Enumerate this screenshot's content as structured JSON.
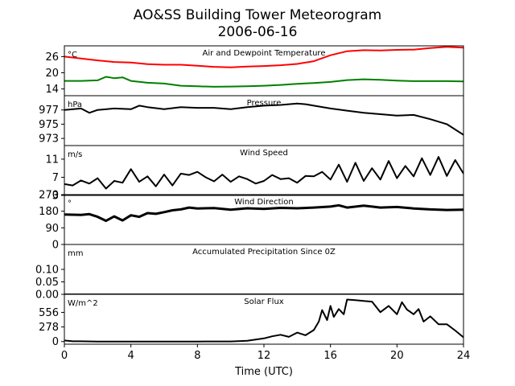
{
  "chart_data": {
    "title": "AO&SS Building Tower Meteorogram",
    "subtitle": "2006-06-16",
    "xlabel": "Time (UTC)",
    "xlim": [
      0,
      24
    ],
    "xticks": [
      "0",
      "4",
      "8",
      "12",
      "16",
      "20",
      "24"
    ],
    "panels": [
      {
        "id": "temp",
        "type": "line",
        "unit": "°C",
        "title": "Air and Dewpoint Temperature",
        "ylim": [
          11.5,
          30
        ],
        "yticks": [
          "14",
          "20",
          "26"
        ],
        "series": [
          {
            "name": "",
            "color": "#ff0000",
            "x": [
              0,
              1,
              2,
              3,
              4,
              5,
              6,
              7,
              8,
              9,
              10,
              11,
              12,
              13,
              14,
              15,
              16,
              17,
              18,
              19,
              20,
              21,
              22,
              23,
              24
            ],
            "y": [
              26,
              25.3,
              24.6,
              24,
              23.8,
              23.2,
              23,
              23,
              22.6,
              22.2,
              22,
              22.3,
              22.5,
              22.8,
              23.3,
              24.3,
              26.5,
              28,
              28.4,
              28.3,
              28.5,
              28.6,
              29.2,
              29.6,
              29.3
            ]
          },
          {
            "name": "",
            "color": "#008000",
            "x": [
              0,
              1,
              2,
              2.5,
              3,
              3.5,
              4,
              5,
              6,
              7,
              8,
              9,
              10,
              11,
              12,
              13,
              14,
              15,
              16,
              17,
              18,
              19,
              20,
              21,
              22,
              23,
              24
            ],
            "y": [
              17,
              17,
              17.2,
              18.5,
              18,
              18.3,
              17,
              16.3,
              16,
              15.2,
              15,
              14.8,
              14.9,
              15,
              15.2,
              15.5,
              15.9,
              16.2,
              16.6,
              17.3,
              17.6,
              17.4,
              17.1,
              16.9,
              16.9,
              16.9,
              16.8
            ]
          }
        ]
      },
      {
        "id": "pressure",
        "type": "line",
        "unit": "hPa",
        "title": "Pressure",
        "ylim": [
          972,
          979
        ],
        "yticks": [
          "973",
          "975",
          "977"
        ],
        "series": [
          {
            "name": "",
            "color": "#000000",
            "x": [
              0,
              1,
              1.5,
              2,
              3,
              4,
              4.5,
              5,
              6,
              7,
              8,
              9,
              10,
              11,
              12,
              13,
              14,
              14.5,
              15,
              16,
              17,
              18,
              19,
              20,
              21,
              22,
              23,
              24
            ],
            "y": [
              977,
              977.2,
              976.6,
              977,
              977.2,
              977.1,
              977.6,
              977.4,
              977.1,
              977.4,
              977.3,
              977.3,
              977.1,
              977.4,
              977.6,
              977.7,
              977.9,
              977.8,
              977.6,
              977.2,
              976.9,
              976.6,
              976.4,
              976.2,
              976.3,
              975.7,
              975,
              973.5
            ]
          }
        ]
      },
      {
        "id": "wind_speed",
        "type": "line",
        "unit": "m/s",
        "title": "Wind Speed",
        "ylim": [
          3,
          14
        ],
        "yticks": [
          "3",
          "7",
          "11"
        ],
        "series": [
          {
            "name": "",
            "color": "#000000",
            "x": [
              0,
              0.5,
              1,
              1.5,
              2,
              2.5,
              3,
              3.5,
              4,
              4.5,
              5,
              5.5,
              6,
              6.5,
              7,
              7.5,
              8,
              8.5,
              9,
              9.5,
              10,
              10.5,
              11,
              11.5,
              12,
              12.5,
              13,
              13.5,
              14,
              14.5,
              15,
              15.5,
              16,
              16.5,
              17,
              17.5,
              18,
              18.5,
              19,
              19.5,
              20,
              20.5,
              21,
              21.5,
              22,
              22.5,
              23,
              23.5,
              24
            ],
            "y": [
              5.5,
              5.2,
              6.3,
              5.6,
              6.8,
              4.5,
              6.2,
              5.8,
              8.8,
              6,
              7.2,
              5,
              7.6,
              5.2,
              7.8,
              7.5,
              8.2,
              7,
              6.1,
              7.6,
              6,
              7.2,
              6.6,
              5.6,
              6.2,
              7.5,
              6.6,
              6.8,
              5.8,
              7.3,
              7.2,
              8.2,
              6.5,
              9.8,
              6,
              10.2,
              6.2,
              9,
              6.5,
              10.6,
              6.8,
              9.5,
              7.2,
              11.2,
              7.5,
              11.5,
              7.3,
              10.8,
              7.8
            ]
          }
        ]
      },
      {
        "id": "wind_dir",
        "type": "line",
        "unit": "°",
        "title": "Wind Direction",
        "ylim": [
          0,
          270
        ],
        "yticks": [
          "0",
          "90",
          "180",
          "270"
        ],
        "series": [
          {
            "name": "",
            "color": "#000000",
            "x": [
              0,
              1,
              1.5,
              2,
              2.5,
              3,
              3.5,
              4,
              4.5,
              5,
              5.5,
              6,
              6.5,
              7,
              7.5,
              8,
              9,
              10,
              11,
              12,
              13,
              14,
              15,
              16,
              16.5,
              17,
              18,
              18.5,
              19,
              20,
              21,
              22,
              23,
              24
            ],
            "y": [
              162,
              160,
              164,
              150,
              128,
              152,
              130,
              158,
              150,
              170,
              166,
              175,
              185,
              190,
              200,
              195,
              197,
              188,
              196,
              193,
              198,
              196,
              200,
              205,
              212,
              200,
              210,
              205,
              200,
              203,
              195,
              190,
              187,
              188
            ]
          }
        ]
      },
      {
        "id": "precip",
        "type": "line",
        "unit": "mm",
        "title": "Accumulated Precipitation Since 0Z",
        "ylim": [
          0,
          0.2
        ],
        "yticks": [
          "0.00",
          "0.05",
          "0.10"
        ],
        "series": [
          {
            "name": "",
            "color": "#000000",
            "x": [
              0,
              24
            ],
            "y": [
              0,
              0
            ]
          }
        ]
      },
      {
        "id": "solar",
        "type": "line",
        "unit": "W/m^2",
        "title": "Solar Flux",
        "ylim": [
          -50,
          900
        ],
        "yticks": [
          "0",
          "278",
          "556"
        ],
        "series": [
          {
            "name": "",
            "color": "#000000",
            "x": [
              0,
              0.5,
              1,
              2,
              4,
              6,
              8,
              10,
              11,
              12,
              12.5,
              13,
              13.5,
              14,
              14.5,
              15,
              15.3,
              15.5,
              15.8,
              16,
              16.2,
              16.5,
              16.8,
              17,
              17.5,
              18,
              18.5,
              19,
              19.5,
              20,
              20.3,
              20.6,
              21,
              21.3,
              21.6,
              22,
              22.5,
              23,
              23.5,
              24
            ],
            "y": [
              20,
              5,
              5,
              0,
              0,
              0,
              0,
              2,
              15,
              60,
              100,
              130,
              90,
              170,
              120,
              220,
              380,
              600,
              410,
              680,
              470,
              620,
              520,
              800,
              790,
              775,
              760,
              560,
              680,
              520,
              750,
              610,
              520,
              620,
              380,
              480,
              330,
              330,
              210,
              80
            ]
          }
        ]
      }
    ]
  }
}
